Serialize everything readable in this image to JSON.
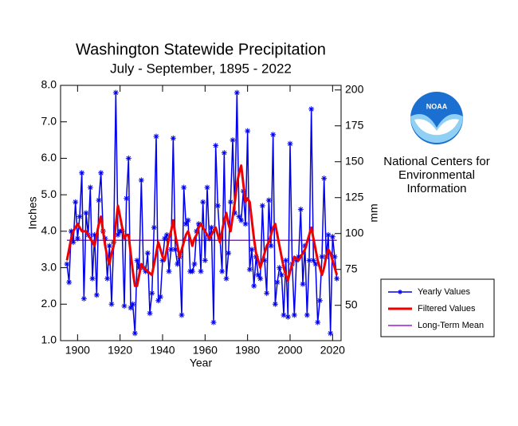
{
  "chart_data": {
    "type": "line",
    "title": "Washington Statewide Precipitation",
    "subtitle": "July - September, 1895 - 2022",
    "xlabel": "Year",
    "ylabel": "Inches",
    "y2label": "mm",
    "x": [
      1895,
      1896,
      1897,
      1898,
      1899,
      1900,
      1901,
      1902,
      1903,
      1904,
      1905,
      1906,
      1907,
      1908,
      1909,
      1910,
      1911,
      1912,
      1913,
      1914,
      1915,
      1916,
      1917,
      1918,
      1919,
      1920,
      1921,
      1922,
      1923,
      1924,
      1925,
      1926,
      1927,
      1928,
      1929,
      1930,
      1931,
      1932,
      1933,
      1934,
      1935,
      1936,
      1937,
      1938,
      1939,
      1940,
      1941,
      1942,
      1943,
      1944,
      1945,
      1946,
      1947,
      1948,
      1949,
      1950,
      1951,
      1952,
      1953,
      1954,
      1955,
      1956,
      1957,
      1958,
      1959,
      1960,
      1961,
      1962,
      1963,
      1964,
      1965,
      1966,
      1967,
      1968,
      1969,
      1970,
      1971,
      1972,
      1973,
      1974,
      1975,
      1976,
      1977,
      1978,
      1979,
      1980,
      1981,
      1982,
      1983,
      1984,
      1985,
      1986,
      1987,
      1988,
      1989,
      1990,
      1991,
      1992,
      1993,
      1994,
      1995,
      1996,
      1997,
      1998,
      1999,
      2000,
      2001,
      2002,
      2003,
      2004,
      2005,
      2006,
      2007,
      2008,
      2009,
      2010,
      2011,
      2012,
      2013,
      2014,
      2015,
      2016,
      2017,
      2018,
      2019,
      2020,
      2021,
      2022
    ],
    "series": [
      {
        "name": "Yearly Values",
        "color": "#0000ee",
        "marker": "star",
        "values": [
          3.1,
          2.6,
          4.0,
          3.7,
          4.8,
          3.8,
          4.4,
          5.6,
          2.15,
          4.5,
          3.9,
          5.2,
          2.7,
          3.9,
          2.25,
          4.85,
          5.6,
          4.0,
          3.8,
          2.7,
          3.6,
          2.0,
          3.7,
          7.8,
          3.9,
          4.0,
          4.0,
          1.95,
          4.9,
          6.0,
          1.9,
          2.0,
          1.2,
          3.2,
          3.0,
          5.4,
          3.0,
          2.9,
          3.4,
          1.75,
          2.3,
          4.1,
          6.6,
          2.1,
          2.2,
          3.2,
          3.8,
          3.9,
          2.9,
          3.5,
          6.55,
          3.5,
          3.1,
          3.3,
          1.7,
          5.2,
          4.2,
          4.3,
          2.9,
          2.9,
          3.1,
          4.0,
          4.2,
          2.9,
          4.8,
          3.2,
          5.2,
          3.8,
          4.1,
          1.5,
          6.35,
          4.7,
          3.8,
          2.9,
          6.15,
          2.7,
          3.4,
          4.8,
          6.5,
          4.5,
          7.8,
          4.4,
          4.3,
          5.1,
          4.2,
          6.75,
          2.95,
          3.5,
          2.5,
          3.3,
          2.8,
          2.7,
          4.7,
          3.2,
          2.3,
          4.85,
          3.6,
          6.65,
          2.0,
          2.6,
          3.0,
          2.8,
          1.7,
          3.2,
          1.65,
          6.4,
          3.1,
          1.7,
          3.2,
          3.3,
          4.6,
          2.55,
          3.6,
          1.7,
          3.2,
          7.35,
          3.2,
          3.1,
          1.5,
          2.1,
          3.3,
          5.45,
          3.3,
          3.9,
          1.2,
          3.85,
          3.3,
          2.7
        ]
      },
      {
        "name": "Filtered Values",
        "color": "#ee0000",
        "values": [
          3.2,
          3.5,
          3.8,
          4.0,
          4.1,
          4.2,
          4.1,
          4.0,
          4.0,
          4.0,
          3.9,
          3.8,
          3.7,
          3.6,
          3.9,
          4.2,
          4.4,
          4.0,
          3.6,
          3.3,
          3.1,
          3.4,
          3.6,
          4.2,
          4.7,
          4.4,
          4.1,
          3.8,
          3.9,
          3.9,
          3.4,
          2.9,
          2.5,
          2.5,
          2.8,
          3.1,
          3.0,
          2.95,
          2.9,
          2.85,
          2.8,
          3.1,
          3.4,
          3.7,
          3.5,
          3.3,
          3.2,
          3.5,
          3.8,
          4.0,
          4.3,
          3.9,
          3.6,
          3.3,
          3.5,
          3.7,
          3.9,
          4.0,
          3.8,
          3.6,
          3.8,
          3.9,
          4.1,
          4.2,
          4.1,
          4.0,
          3.9,
          3.8,
          3.9,
          4.0,
          4.1,
          3.9,
          3.7,
          4.0,
          4.3,
          4.5,
          4.2,
          4.0,
          4.4,
          4.8,
          5.3,
          5.6,
          5.8,
          5.3,
          4.8,
          4.9,
          4.8,
          4.3,
          3.8,
          3.4,
          3.2,
          3.0,
          3.2,
          3.4,
          3.6,
          3.7,
          3.9,
          4.1,
          4.2,
          3.9,
          3.6,
          3.3,
          3.0,
          2.8,
          2.65,
          2.9,
          3.1,
          3.3,
          3.25,
          3.2,
          3.3,
          3.4,
          3.5,
          3.7,
          3.9,
          4.1,
          3.8,
          3.5,
          3.2,
          3.0,
          2.8,
          3.0,
          3.3,
          3.5,
          3.4,
          3.2,
          3.0,
          2.8
        ]
      }
    ],
    "mean_line": {
      "name": "Long-Term Mean",
      "color": "#9a1fd0",
      "value": 3.75
    },
    "xlim": [
      1892,
      2024
    ],
    "xticks": [
      1900,
      1920,
      1940,
      1960,
      1980,
      2000,
      2020
    ],
    "ylim": [
      1,
      8
    ],
    "yticks": [
      {
        "value": 1,
        "label": "1.0"
      },
      {
        "value": 2,
        "label": "2.0"
      },
      {
        "value": 3,
        "label": "3.0"
      },
      {
        "value": 4,
        "label": "4.0"
      },
      {
        "value": 5,
        "label": "5.0"
      },
      {
        "value": 6,
        "label": "6.0"
      },
      {
        "value": 7,
        "label": "7.0"
      },
      {
        "value": 8,
        "label": "8.0"
      }
    ],
    "y2lim": [
      25.4,
      203.2
    ],
    "y2ticks": [
      50,
      75,
      100,
      125,
      150,
      175,
      200
    ],
    "legend": "right",
    "logo_text": "NOAA",
    "org_lines": [
      "National Centers for",
      "Environmental",
      "Information"
    ]
  }
}
